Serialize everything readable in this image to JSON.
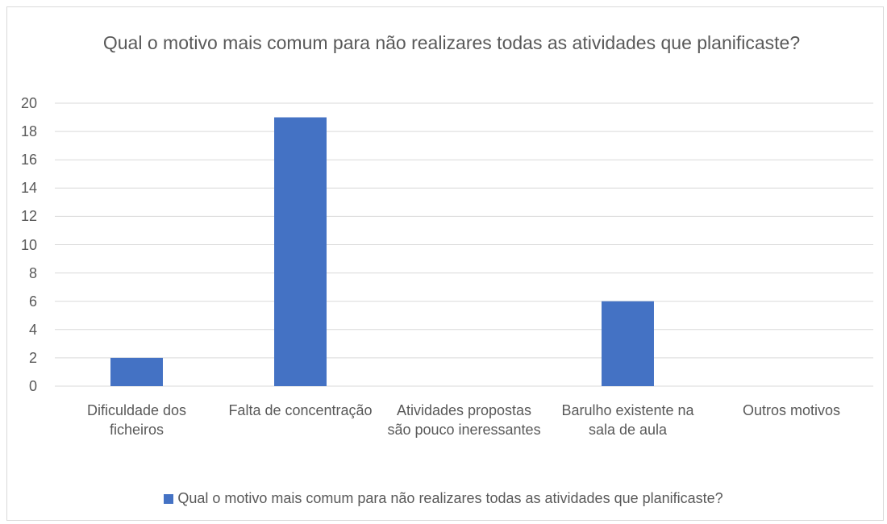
{
  "chart_data": {
    "type": "bar",
    "title": "Qual o motivo mais comum para não realizares todas as atividades que planificaste?",
    "categories": [
      "Dificuldade dos ficheiros",
      "Falta de concentração",
      "Atividades propostas são pouco ineressantes",
      "Barulho existente na sala de aula",
      "Outros motivos"
    ],
    "series": [
      {
        "name": "Qual o motivo mais comum para não realizares todas as atividades que planificaste?",
        "color": "#4472c4",
        "values": [
          2,
          19,
          0,
          6,
          0
        ]
      }
    ],
    "ylim": [
      0,
      20
    ],
    "yticks": [
      0,
      2,
      4,
      6,
      8,
      10,
      12,
      14,
      16,
      18,
      20
    ],
    "grid": true,
    "legend": "bottom"
  }
}
